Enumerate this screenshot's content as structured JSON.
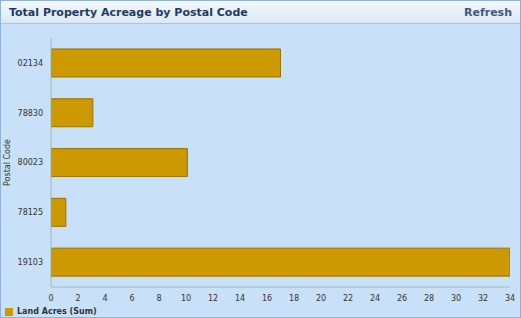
{
  "chart_data": {
    "type": "bar",
    "title": "Total Property Acreage by Postal Code",
    "orientation": "horizontal",
    "categories": [
      "02134",
      "78830",
      "80023",
      "78125",
      "19103"
    ],
    "series": [
      {
        "name": "Land Acres (Sum)",
        "color": "#cc9900",
        "values": [
          17,
          3.1,
          10.1,
          1.1,
          34
        ]
      }
    ],
    "xlim": [
      0,
      34
    ],
    "xticks": [
      0,
      2,
      4,
      6,
      8,
      10,
      12,
      14,
      16,
      18,
      20,
      22,
      24,
      26,
      28,
      30,
      32,
      34
    ],
    "ylabel": "Postal Code",
    "grid": false,
    "legend": "bottom-left"
  },
  "header": {
    "button": "Refresh"
  }
}
